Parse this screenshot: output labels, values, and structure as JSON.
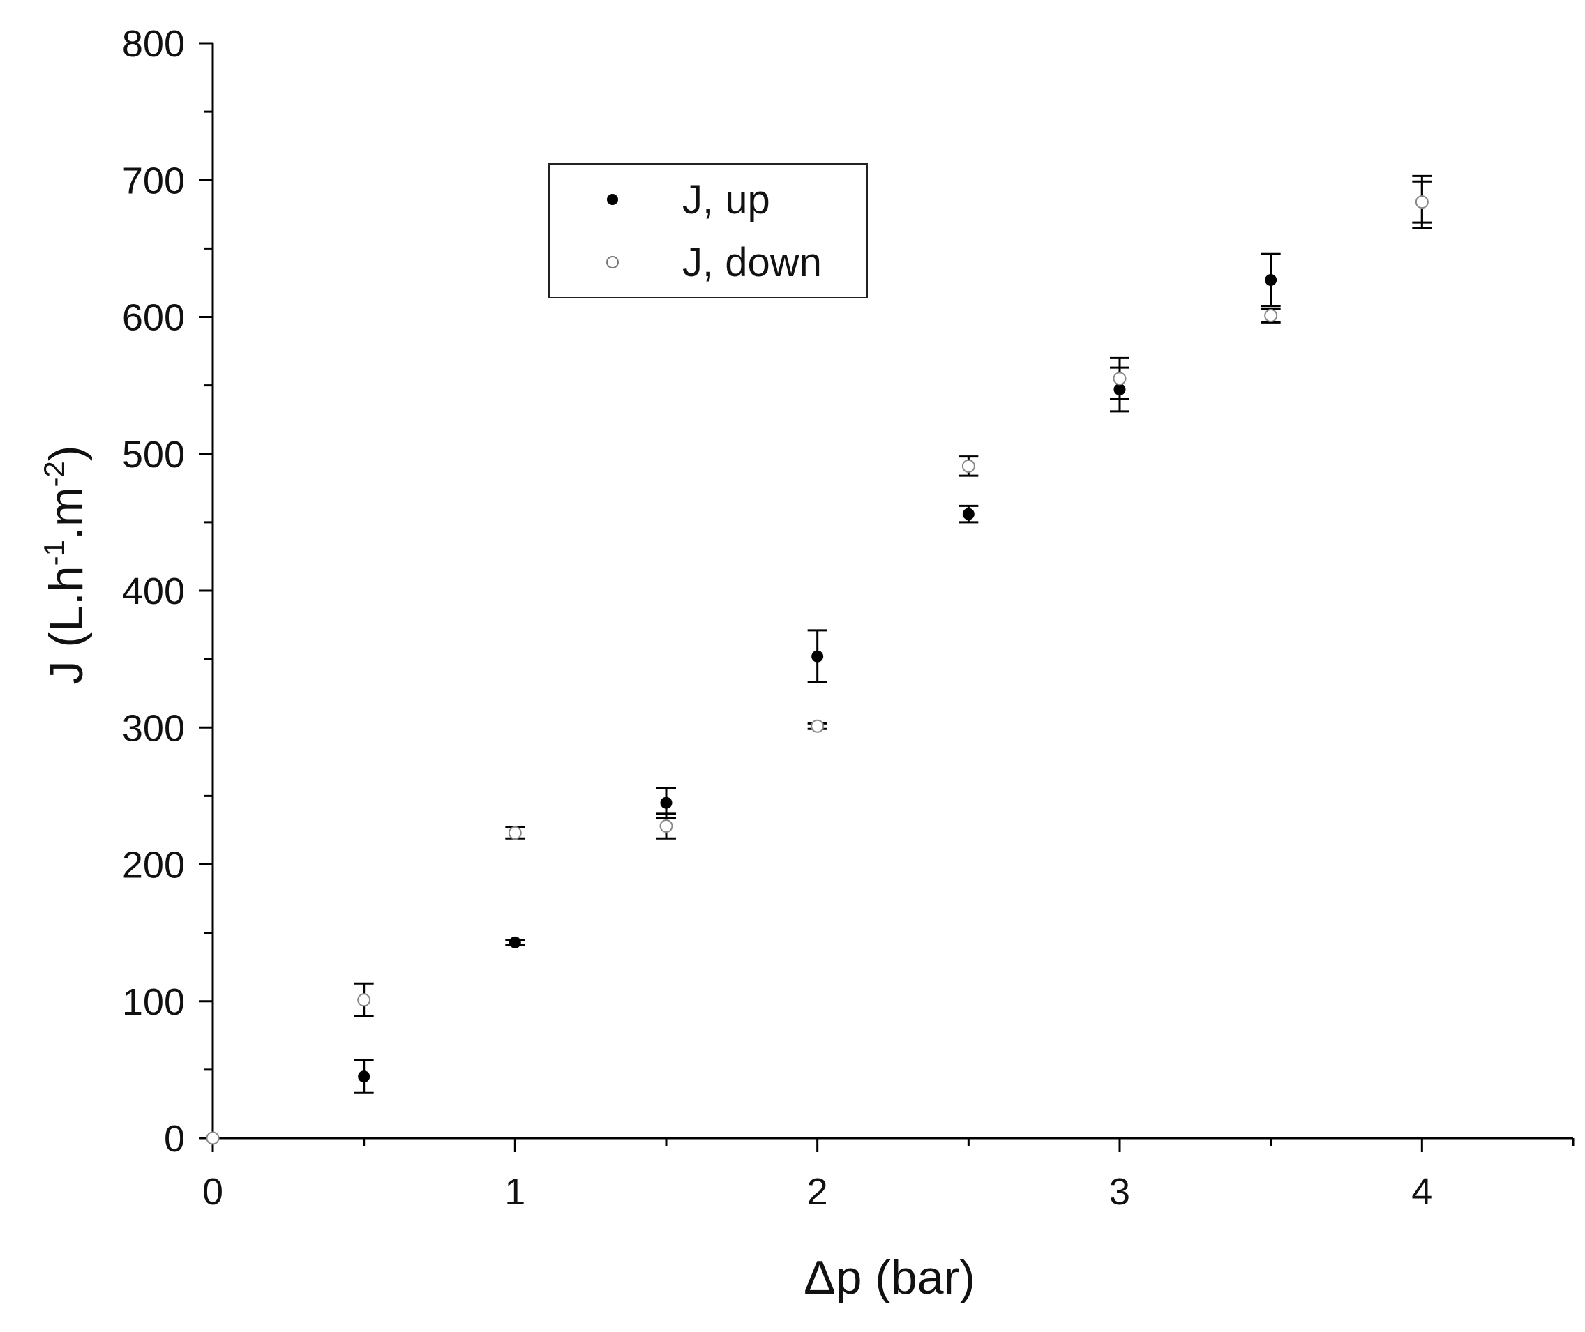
{
  "chart_data": {
    "type": "scatter",
    "title": "",
    "xlabel": "Δp (bar)",
    "ylabel_main": "J (L.h",
    "ylabel_sup1": "-1",
    "ylabel_mid": ".m",
    "ylabel_sup2": "-2",
    "ylabel_end": ")",
    "xlim": [
      0,
      4.5
    ],
    "ylim": [
      0,
      800
    ],
    "x_ticks": [
      0,
      1,
      2,
      3,
      4
    ],
    "x_tick_labels": [
      "0",
      "1",
      "2",
      "3",
      "4"
    ],
    "y_ticks": [
      0,
      100,
      200,
      300,
      400,
      500,
      600,
      700,
      800
    ],
    "y_tick_labels": [
      "0",
      "100",
      "200",
      "300",
      "400",
      "500",
      "600",
      "700",
      "800"
    ],
    "legend_position": "upper-left-center",
    "grid": false,
    "series": [
      {
        "name": "J, up",
        "marker": "filled-circle",
        "color": "#000000",
        "x": [
          0,
          0.5,
          1.0,
          1.5,
          2.0,
          2.5,
          3.0,
          3.5,
          4.0
        ],
        "y": [
          0,
          45,
          143,
          245,
          352,
          456,
          547,
          627,
          684
        ],
        "err": [
          0,
          12,
          2,
          11,
          19,
          6,
          16,
          19,
          15
        ]
      },
      {
        "name": "J, down",
        "marker": "open-circle",
        "color": "#000000",
        "x": [
          0,
          0.5,
          1.0,
          1.5,
          2.0,
          2.5,
          3.0,
          3.5,
          4.0
        ],
        "y": [
          0,
          101,
          223,
          228,
          301,
          491,
          555,
          601,
          684
        ],
        "err": [
          0,
          12,
          4,
          9,
          2,
          7,
          15,
          5,
          19
        ]
      }
    ]
  }
}
